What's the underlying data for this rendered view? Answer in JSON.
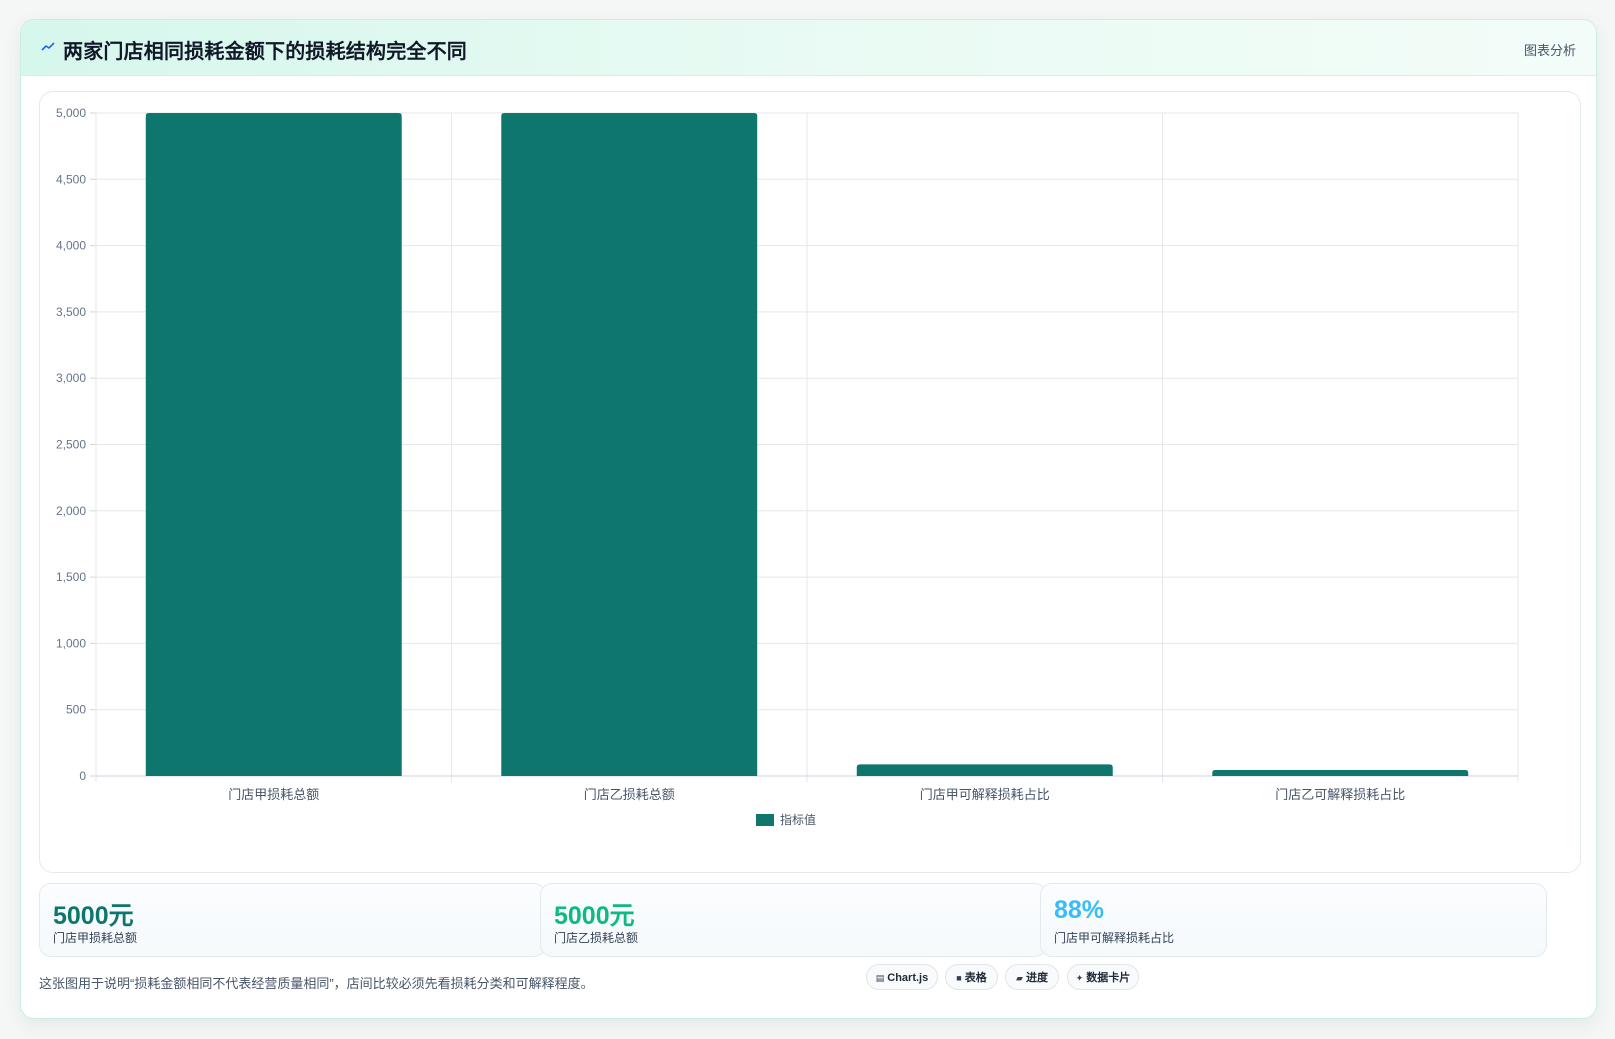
{
  "header": {
    "title": "两家门店相同损耗金额下的损耗结构完全不同",
    "tag": "图表分析"
  },
  "chart_data": {
    "type": "bar",
    "categories": [
      "门店甲损耗总额",
      "门店乙损耗总额",
      "门店甲可解释损耗占比",
      "门店乙可解释损耗占比"
    ],
    "series": [
      {
        "name": "指标值",
        "values": [
          5000,
          5000,
          88,
          45
        ]
      }
    ],
    "ylim": [
      0,
      5000
    ],
    "yticks": [
      0,
      500,
      1000,
      1500,
      2000,
      2500,
      3000,
      3500,
      4000,
      4500,
      5000
    ],
    "grid": true,
    "legend": "bottom",
    "color": "#0f766e"
  },
  "stats": [
    {
      "value": "5000元",
      "label": "门店甲损耗总额",
      "color": "#0f766e"
    },
    {
      "value": "5000元",
      "label": "门店乙损耗总额",
      "color": "#10b981"
    },
    {
      "value": "88%",
      "label": "门店甲可解释损耗占比",
      "color": "#38bdf8"
    }
  ],
  "footnote": "这张图用于说明“损耗金额相同不代表经营质量相同”，店间比较必须先看损耗分类和可解释程度。",
  "chips": [
    {
      "icon": "▤",
      "label": "Chart.js"
    },
    {
      "icon": "■",
      "label": "表格"
    },
    {
      "icon": "▰",
      "label": "进度"
    },
    {
      "icon": "✦",
      "label": "数据卡片"
    }
  ]
}
